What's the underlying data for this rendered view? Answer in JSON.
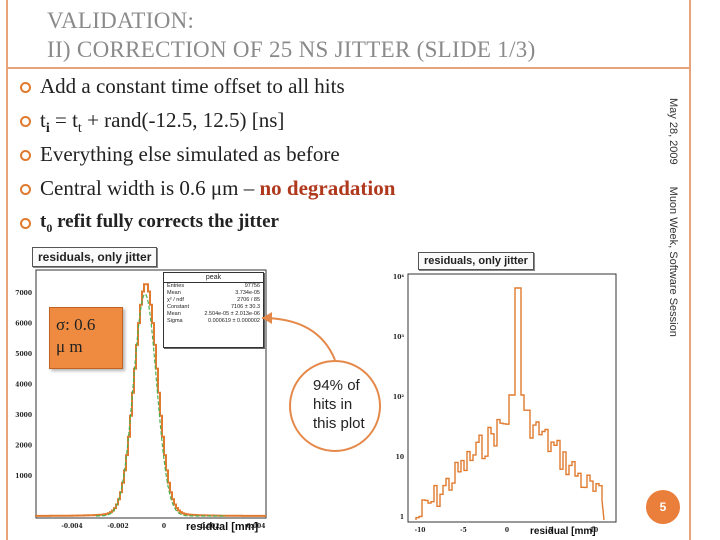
{
  "slide": {
    "title_line1": "VALIDATION:",
    "title_line2": "II) CORRECTION OF 25 NS JITTER (SLIDE 1/3)",
    "side_date": "May 28, 2009",
    "side_event": "Muon Week, Software Session",
    "page_number": "5",
    "accent_color": "#e07a2f"
  },
  "bullets": {
    "b1": "Add a constant time offset to all hits",
    "b2_t": "t",
    "b2_i": "i",
    "b2_eq": " = t",
    "b2_sub_t": "t",
    "b2_rest": " + rand(-12.5, 12.5) [ns]",
    "b3": "Everything else simulated as before",
    "b4_a": "Central width is 0.6 μm – ",
    "b4_b": "no degradation",
    "b5_t": "t",
    "b5_0": "0",
    "b5_rest": " refit fully corrects the jitter"
  },
  "left_plot": {
    "title": "residuals, only jitter",
    "x_label": "residual [mm]",
    "y_ticks": [
      "7000",
      "6000",
      "5000",
      "4000",
      "3000",
      "2000",
      "1000"
    ],
    "x_ticks": [
      "-0.004",
      "-0.002",
      "0",
      "0.002",
      "0.004"
    ],
    "stats": {
      "name": "peak",
      "rows": [
        [
          "Entries",
          "97756"
        ],
        [
          "Mean",
          "3.734e-05"
        ],
        [
          "χ² / ndf",
          "2706 / 85"
        ],
        [
          "Constant",
          "7106 ± 30.3"
        ],
        [
          "Mean",
          "2.504e-05 ± 2.013e-06"
        ],
        [
          "Sigma",
          "0.000619 ± 0.000002"
        ]
      ]
    },
    "sigma_note_1": "σ:  0.6",
    "sigma_note_2": "μ m"
  },
  "right_plot": {
    "title": "residuals, only jitter",
    "x_label": "residual [mm]",
    "y_ticks": [
      "10⁴",
      "10³",
      "10²",
      "10",
      "1"
    ],
    "x_ticks": [
      "-10",
      "-5",
      "0",
      "5",
      "10"
    ]
  },
  "callout": {
    "line1": "94% of",
    "line2": "hits in",
    "line3": "this plot"
  }
}
